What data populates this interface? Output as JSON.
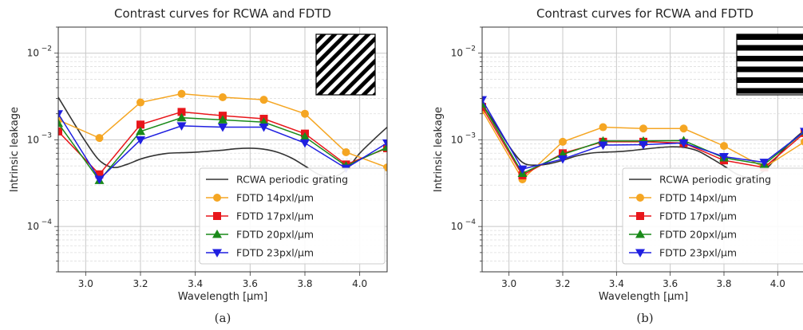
{
  "chart_data": [
    {
      "type": "line",
      "title": "Contrast curves for RCWA and FDTD",
      "xlabel": "Wavelength [µm]",
      "ylabel": "Intrinsic leakage",
      "caption": "(a)",
      "xlim": [
        2.9,
        4.1
      ],
      "ylim": [
        3e-05,
        0.02
      ],
      "yscale": "log",
      "grid": true,
      "legend_position": "lower-right",
      "xticks": [
        3.0,
        3.2,
        3.4,
        3.6,
        3.8,
        4.0
      ],
      "xtick_labels": [
        "3.0",
        "3.2",
        "3.4",
        "3.6",
        "3.8",
        "4.0"
      ],
      "ytick_labels": [
        {
          "value": 0.01,
          "base": "10",
          "exp": "−2"
        },
        {
          "value": 0.001,
          "base": "10",
          "exp": "−3"
        },
        {
          "value": 0.0001,
          "base": "10",
          "exp": "−4"
        }
      ],
      "inset": "diagonal-stripes-icon",
      "series": [
        {
          "name": "RCWA periodic grating",
          "color": "#333333",
          "marker": "none",
          "x": [
            2.9,
            2.95,
            3.0,
            3.05,
            3.1,
            3.15,
            3.2,
            3.25,
            3.3,
            3.35,
            3.4,
            3.45,
            3.5,
            3.55,
            3.6,
            3.65,
            3.7,
            3.75,
            3.8,
            3.85,
            3.9,
            3.95,
            4.0,
            4.05,
            4.1
          ],
          "y": [
            0.0031,
            0.0017,
            0.00095,
            0.00058,
            0.00048,
            0.00052,
            0.0006,
            0.00066,
            0.0007,
            0.00071,
            0.00072,
            0.00074,
            0.00076,
            0.00079,
            0.0008,
            0.00078,
            0.00072,
            0.00062,
            0.0005,
            0.0004,
            0.00037,
            0.00045,
            0.0007,
            0.001,
            0.0014
          ]
        },
        {
          "name": "FDTD 14pxl/µm",
          "color": "#f5a623",
          "marker": "circle",
          "x": [
            2.9,
            3.05,
            3.2,
            3.35,
            3.5,
            3.65,
            3.8,
            3.95,
            4.1
          ],
          "y": [
            0.0017,
            0.00105,
            0.0027,
            0.0034,
            0.0031,
            0.0029,
            0.002,
            0.00072,
            0.00048
          ]
        },
        {
          "name": "FDTD 17pxl/µm",
          "color": "#e8161b",
          "marker": "square",
          "x": [
            2.9,
            3.05,
            3.2,
            3.35,
            3.5,
            3.65,
            3.8,
            3.95,
            4.1
          ],
          "y": [
            0.00125,
            0.0004,
            0.0015,
            0.0021,
            0.0019,
            0.00175,
            0.00118,
            0.00052,
            0.0008
          ]
        },
        {
          "name": "FDTD 20pxl/µm",
          "color": "#1a8a1a",
          "marker": "triangle-up",
          "x": [
            2.9,
            3.05,
            3.2,
            3.35,
            3.5,
            3.65,
            3.8,
            3.95,
            4.1
          ],
          "y": [
            0.00155,
            0.00034,
            0.00125,
            0.0018,
            0.0017,
            0.0016,
            0.00108,
            0.0005,
            0.00082
          ]
        },
        {
          "name": "FDTD 23pxl/µm",
          "color": "#1f1fe0",
          "marker": "triangle-down",
          "x": [
            2.9,
            3.05,
            3.2,
            3.35,
            3.5,
            3.65,
            3.8,
            3.95,
            4.1
          ],
          "y": [
            0.002,
            0.00035,
            0.001,
            0.00145,
            0.0014,
            0.0014,
            0.00092,
            0.00047,
            0.00092
          ]
        }
      ]
    },
    {
      "type": "line",
      "title": "Contrast curves for RCWA and FDTD",
      "xlabel": "Wavelength [µm]",
      "ylabel": "Intrinsic leakage",
      "caption": "(b)",
      "xlim": [
        2.9,
        4.1
      ],
      "ylim": [
        3e-05,
        0.02
      ],
      "yscale": "log",
      "grid": true,
      "legend_position": "lower-right",
      "xticks": [
        3.0,
        3.2,
        3.4,
        3.6,
        3.8,
        4.0
      ],
      "xtick_labels": [
        "3.0",
        "3.2",
        "3.4",
        "3.6",
        "3.8",
        "4.0"
      ],
      "ytick_labels": [
        {
          "value": 0.01,
          "base": "10",
          "exp": "−2"
        },
        {
          "value": 0.001,
          "base": "10",
          "exp": "−3"
        },
        {
          "value": 0.0001,
          "base": "10",
          "exp": "−4"
        }
      ],
      "inset": "horizontal-stripes-icon",
      "series": [
        {
          "name": "RCWA periodic grating",
          "color": "#333333",
          "marker": "none",
          "x": [
            2.9,
            2.95,
            3.0,
            3.05,
            3.1,
            3.15,
            3.2,
            3.25,
            3.3,
            3.35,
            3.4,
            3.45,
            3.5,
            3.55,
            3.6,
            3.65,
            3.7,
            3.75,
            3.8,
            3.85,
            3.9,
            3.95,
            4.0,
            4.05,
            4.1
          ],
          "y": [
            0.0026,
            0.0015,
            0.00085,
            0.00055,
            0.00051,
            0.00053,
            0.00058,
            0.00065,
            0.0007,
            0.00072,
            0.00073,
            0.00075,
            0.00078,
            0.00081,
            0.00083,
            0.00082,
            0.00075,
            0.00062,
            0.0005,
            0.0004,
            0.00037,
            0.00044,
            0.00065,
            0.00095,
            0.0013
          ]
        },
        {
          "name": "FDTD 14pxl/µm",
          "color": "#f5a623",
          "marker": "circle",
          "x": [
            2.9,
            3.05,
            3.2,
            3.35,
            3.5,
            3.65,
            3.8,
            3.95,
            4.1
          ],
          "y": [
            0.0022,
            0.00035,
            0.00095,
            0.0014,
            0.00135,
            0.00135,
            0.00085,
            0.00048,
            0.00095
          ]
        },
        {
          "name": "FDTD 17pxl/µm",
          "color": "#e8161b",
          "marker": "square",
          "x": [
            2.9,
            3.05,
            3.2,
            3.35,
            3.5,
            3.65,
            3.8,
            3.95,
            4.1
          ],
          "y": [
            0.0024,
            0.00039,
            0.0007,
            0.00095,
            0.00095,
            0.00092,
            0.00058,
            0.00048,
            0.0012
          ]
        },
        {
          "name": "FDTD 20pxl/µm",
          "color": "#1a8a1a",
          "marker": "triangle-up",
          "x": [
            2.9,
            3.05,
            3.2,
            3.35,
            3.5,
            3.65,
            3.8,
            3.95,
            4.1
          ],
          "y": [
            0.0026,
            0.00041,
            0.00068,
            0.00097,
            0.00097,
            0.00098,
            0.00062,
            0.00052,
            0.00125
          ]
        },
        {
          "name": "FDTD 23pxl/µm",
          "color": "#1f1fe0",
          "marker": "triangle-down",
          "x": [
            2.9,
            3.05,
            3.2,
            3.35,
            3.5,
            3.65,
            3.8,
            3.95,
            4.1
          ],
          "y": [
            0.0029,
            0.00046,
            0.0006,
            0.00087,
            0.00088,
            0.00092,
            0.00064,
            0.00055,
            0.00125
          ]
        }
      ]
    }
  ]
}
